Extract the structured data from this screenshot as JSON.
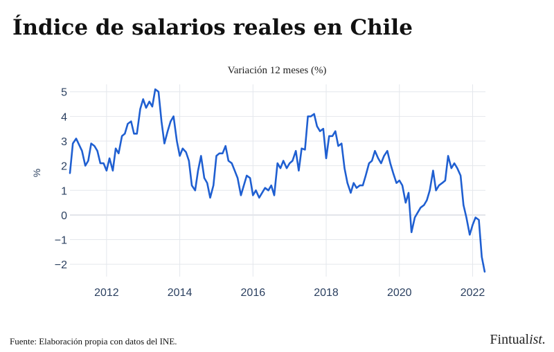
{
  "title": "Índice de salarios reales en Chile",
  "source": "Fuente: Elaboración propia con datos del INE.",
  "brand": {
    "main": "Fintual",
    "italic": "ist."
  },
  "colors": {
    "line": "#1f5fd1",
    "grid": "#e4e7ec",
    "axis_text": "#2a3f5f"
  },
  "chart_data": {
    "type": "line",
    "title": "Variación 12 meses (%)",
    "xlabel": "",
    "ylabel": "%",
    "xlim": [
      2011.0,
      2022.35
    ],
    "ylim": [
      -2.5,
      5.3
    ],
    "xticks": [
      2012,
      2014,
      2016,
      2018,
      2020,
      2022
    ],
    "yticks": [
      -2,
      -1,
      0,
      1,
      2,
      3,
      4,
      5
    ],
    "grid": true,
    "x": [
      2011.0,
      2011.08,
      2011.17,
      2011.25,
      2011.33,
      2011.42,
      2011.5,
      2011.58,
      2011.67,
      2011.75,
      2011.83,
      2011.92,
      2012.0,
      2012.08,
      2012.17,
      2012.25,
      2012.33,
      2012.42,
      2012.5,
      2012.58,
      2012.67,
      2012.75,
      2012.83,
      2012.92,
      2013.0,
      2013.08,
      2013.17,
      2013.25,
      2013.33,
      2013.42,
      2013.5,
      2013.58,
      2013.67,
      2013.75,
      2013.83,
      2013.92,
      2014.0,
      2014.08,
      2014.17,
      2014.25,
      2014.33,
      2014.42,
      2014.5,
      2014.58,
      2014.67,
      2014.75,
      2014.83,
      2014.92,
      2015.0,
      2015.08,
      2015.17,
      2015.25,
      2015.33,
      2015.42,
      2015.5,
      2015.58,
      2015.67,
      2015.75,
      2015.83,
      2015.92,
      2016.0,
      2016.08,
      2016.17,
      2016.25,
      2016.33,
      2016.42,
      2016.5,
      2016.58,
      2016.67,
      2016.75,
      2016.83,
      2016.92,
      2017.0,
      2017.08,
      2017.17,
      2017.25,
      2017.33,
      2017.42,
      2017.5,
      2017.58,
      2017.67,
      2017.75,
      2017.83,
      2017.92,
      2018.0,
      2018.08,
      2018.17,
      2018.25,
      2018.33,
      2018.42,
      2018.5,
      2018.58,
      2018.67,
      2018.75,
      2018.83,
      2018.92,
      2019.0,
      2019.08,
      2019.17,
      2019.25,
      2019.33,
      2019.42,
      2019.5,
      2019.58,
      2019.67,
      2019.75,
      2019.83,
      2019.92,
      2020.0,
      2020.08,
      2020.17,
      2020.25,
      2020.33,
      2020.42,
      2020.5,
      2020.58,
      2020.67,
      2020.75,
      2020.83,
      2020.92,
      2021.0,
      2021.08,
      2021.17,
      2021.25,
      2021.33,
      2021.42,
      2021.5,
      2021.58,
      2021.67,
      2021.75,
      2021.83,
      2021.92,
      2022.0,
      2022.08,
      2022.17,
      2022.25,
      2022.33
    ],
    "y": [
      1.7,
      2.9,
      3.1,
      2.85,
      2.6,
      2.0,
      2.2,
      2.9,
      2.8,
      2.6,
      2.1,
      2.1,
      1.8,
      2.3,
      1.8,
      2.7,
      2.5,
      3.2,
      3.3,
      3.7,
      3.8,
      3.3,
      3.3,
      4.3,
      4.7,
      4.35,
      4.6,
      4.4,
      5.1,
      5.0,
      3.8,
      2.9,
      3.4,
      3.8,
      4.0,
      3.0,
      2.4,
      2.7,
      2.55,
      2.2,
      1.2,
      1.0,
      1.8,
      2.4,
      1.5,
      1.3,
      0.7,
      1.2,
      2.4,
      2.5,
      2.5,
      2.8,
      2.2,
      2.1,
      1.8,
      1.5,
      0.8,
      1.2,
      1.6,
      1.5,
      0.8,
      1.0,
      0.7,
      0.9,
      1.1,
      1.0,
      1.2,
      0.8,
      2.1,
      1.9,
      2.2,
      1.9,
      2.1,
      2.2,
      2.6,
      1.8,
      2.7,
      2.65,
      4.0,
      4.0,
      4.1,
      3.6,
      3.4,
      3.5,
      2.3,
      3.2,
      3.2,
      3.4,
      2.8,
      2.9,
      1.9,
      1.3,
      0.9,
      1.3,
      1.1,
      1.2,
      1.2,
      1.6,
      2.1,
      2.2,
      2.6,
      2.3,
      2.1,
      2.4,
      2.6,
      2.1,
      1.7,
      1.3,
      1.4,
      1.2,
      0.5,
      0.9,
      -0.7,
      -0.1,
      0.1,
      0.3,
      0.4,
      0.6,
      1.0,
      1.8,
      1.0,
      1.2,
      1.3,
      1.4,
      2.4,
      1.9,
      2.1,
      1.9,
      1.6,
      0.4,
      -0.1,
      -0.8,
      -0.4,
      -0.1,
      -0.2,
      -1.7,
      -2.3
    ]
  }
}
